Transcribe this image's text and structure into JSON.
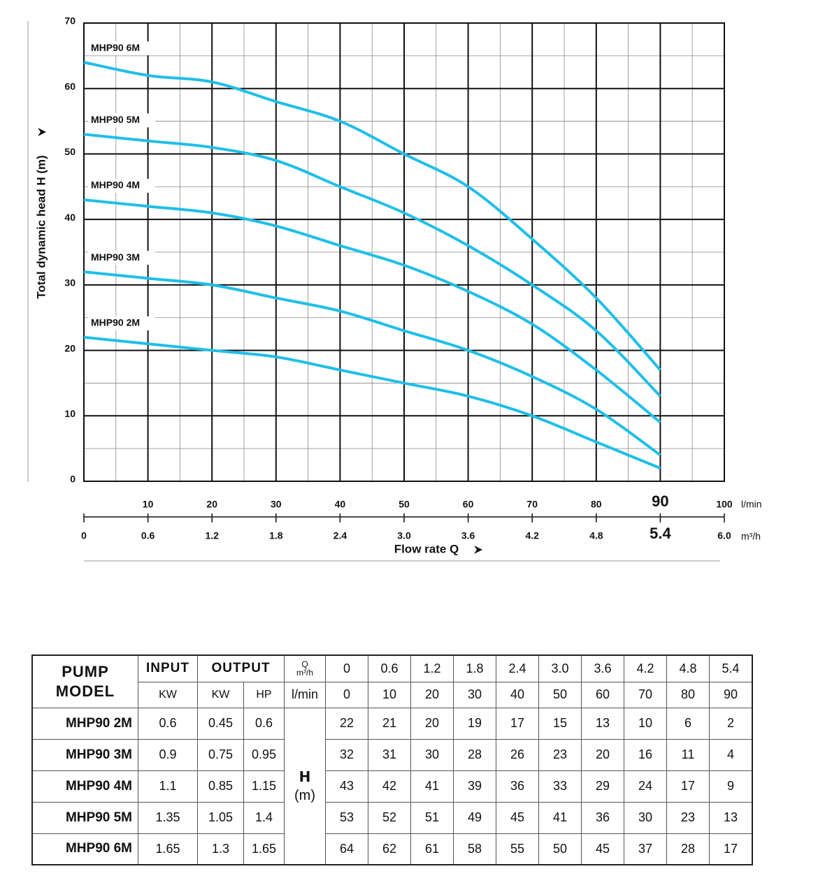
{
  "chart_data": {
    "type": "line",
    "y_label": "Total dynamic head H (m)",
    "x_label": "Flow rate Q",
    "x_unit": "l/min",
    "x2_unit": "m³/h",
    "x": [
      0,
      10,
      20,
      30,
      40,
      50,
      60,
      70,
      80,
      90
    ],
    "series": [
      {
        "name": "MHP90 2M",
        "color": "#1fbfe8",
        "values": [
          22,
          21,
          20,
          19,
          17,
          15,
          13,
          10,
          6,
          2
        ]
      },
      {
        "name": "MHP90 3M",
        "color": "#1fbfe8",
        "values": [
          32,
          31,
          30,
          28,
          26,
          23,
          20,
          16,
          11,
          4
        ]
      },
      {
        "name": "MHP90 4M",
        "color": "#1fbfe8",
        "values": [
          43,
          42,
          41,
          39,
          36,
          33,
          29,
          24,
          17,
          9
        ]
      },
      {
        "name": "MHP90 5M",
        "color": "#1fbfe8",
        "values": [
          53,
          52,
          51,
          49,
          45,
          41,
          36,
          30,
          23,
          13
        ]
      },
      {
        "name": "MHP90 6M",
        "color": "#1fbfe8",
        "values": [
          64,
          62,
          61,
          58,
          55,
          50,
          45,
          37,
          28,
          17
        ]
      }
    ],
    "xlim": [
      0,
      100
    ],
    "xticks": [
      10,
      20,
      30,
      40,
      50,
      60,
      70,
      80,
      90,
      100
    ],
    "x2lim": [
      0,
      6
    ],
    "x2ticks": [
      0,
      0.6,
      1.2,
      1.8,
      2.4,
      {
        "value": 3,
        "label": "3.0"
      },
      3.6,
      4.2,
      4.8,
      5.4,
      {
        "value": 6,
        "label": "6.0"
      }
    ],
    "ylim": [
      0,
      70
    ],
    "yticks": [
      0,
      10,
      20,
      30,
      40,
      50,
      60,
      70
    ],
    "grid": true,
    "minor_grid": true,
    "emphasized_ticks": {
      "x": 90,
      "x2": 5.4
    }
  },
  "table": {
    "model_header": [
      "PUMP",
      "MODEL"
    ],
    "input": "INPUT",
    "output": "OUTPUT",
    "input_unit": "KW",
    "output_unit_kw": "KW",
    "output_unit_hp": "HP",
    "q_label": "Q",
    "h_label": "H",
    "h_unit": "(m)",
    "rows": [
      {
        "input_kw": 0.6,
        "output_kw": 0.45,
        "output_hp": 0.6
      },
      {
        "input_kw": 0.9,
        "output_kw": 0.75,
        "output_hp": 0.95
      },
      {
        "input_kw": 1.1,
        "output_kw": 0.85,
        "output_hp": 1.15
      },
      {
        "input_kw": 1.35,
        "output_kw": 1.05,
        "output_hp": 1.4
      },
      {
        "input_kw": 1.65,
        "output_kw": 1.3,
        "output_hp": 1.65
      }
    ]
  }
}
